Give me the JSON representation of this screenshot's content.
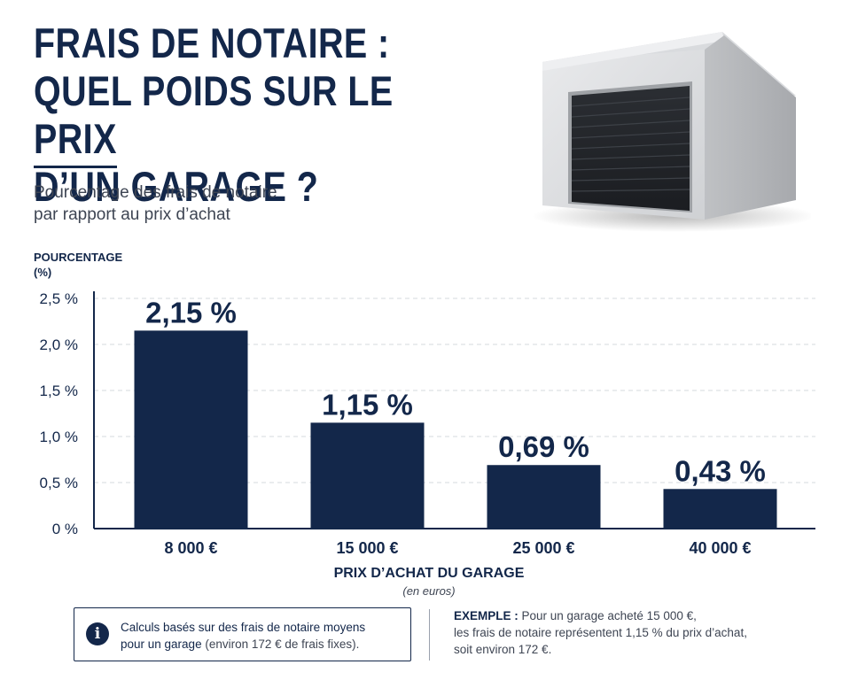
{
  "header": {
    "title_lines": [
      "FRAIS DE NOTAIRE :",
      "QUEL POIDS SUR LE PRIX",
      "D’UN GARAGE ?"
    ],
    "subtitle_lines": [
      "Pourcentage des frais de notaire",
      "par rapport au prix d’achat"
    ]
  },
  "illustration": {
    "icon": "garage-illustration"
  },
  "chart_data": {
    "type": "bar",
    "categories": [
      "8 000 €",
      "15 000 €",
      "25 000 €",
      "40 000 €"
    ],
    "values": [
      2.15,
      1.15,
      0.69,
      0.43
    ],
    "data_labels": [
      "2,15 %",
      "1,15 %",
      "0,69 %",
      "0,43 %"
    ],
    "ylabel_lines": [
      "POURCENTAGE",
      "(%)"
    ],
    "xlabel": "PRIX D’ACHAT DU GARAGE",
    "xlabel_sub": "(en euros)",
    "ylim": [
      0,
      2.5
    ],
    "yticks": [
      0,
      0.5,
      1.0,
      1.5,
      2.0,
      2.5
    ],
    "ytick_labels": [
      "0 %",
      "0,5 %",
      "1,0 %",
      "1,5 %",
      "2,0 %",
      "2,5 %"
    ],
    "grid": true,
    "bar_color": "#13274a"
  },
  "footer": {
    "note_part1": "Calculs basés sur des frais de notaire moyens",
    "note_part2": "pour un garage",
    "note_part3": " (environ 172 € de frais fixes).",
    "example_label": "EXEMPLE :",
    "example_line1": " Pour un garage acheté 15 000 €,",
    "example_line2": "les frais de notaire représentent 1,15 % du prix d’achat,",
    "example_line3": "soit environ 172 €."
  },
  "colors": {
    "navy": "#13274a",
    "grey_text": "#3e4553",
    "grid": "#d5d8de"
  }
}
